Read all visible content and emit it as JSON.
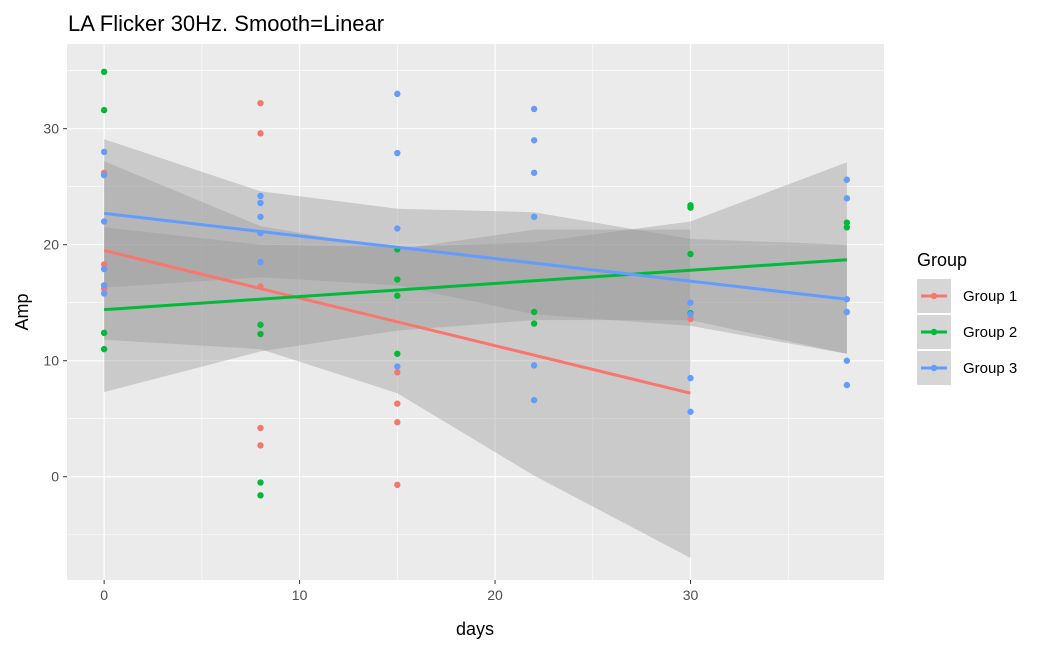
{
  "chart_data": {
    "type": "scatter",
    "title": "LA Flicker 30Hz. Smooth=Linear",
    "xlabel": "days",
    "ylabel": "Amp",
    "xlim": [
      -1.9,
      39.9
    ],
    "ylim": [
      -8.9,
      37.3
    ],
    "x_ticks": [
      0,
      10,
      20,
      30
    ],
    "y_ticks": [
      0,
      10,
      20,
      30
    ],
    "grid": true,
    "legend": {
      "title": "Group",
      "position": "right"
    },
    "band_color": "#999999",
    "series": [
      {
        "name": "Group 1",
        "color": "#F8766D",
        "points": [
          [
            0,
            26.2
          ],
          [
            0,
            18.3
          ],
          [
            0,
            16.2
          ],
          [
            8,
            32.2
          ],
          [
            8,
            29.6
          ],
          [
            8,
            16.4
          ],
          [
            8,
            4.2
          ],
          [
            8,
            2.7
          ],
          [
            15,
            9.0
          ],
          [
            15,
            6.3
          ],
          [
            15,
            4.7
          ],
          [
            15,
            -0.7
          ],
          [
            30,
            13.6
          ]
        ],
        "fit": {
          "x": [
            0,
            30
          ],
          "y": [
            19.5,
            7.2
          ]
        },
        "band": {
          "x": [
            0,
            8,
            15,
            22,
            30
          ],
          "upper": [
            27.2,
            21.6,
            19.6,
            21.3,
            21.3
          ],
          "lower": [
            11.8,
            11.0,
            7.2,
            0.1,
            -7.0
          ]
        }
      },
      {
        "name": "Group 2",
        "color": "#00BA38",
        "points": [
          [
            0,
            34.9
          ],
          [
            0,
            31.6
          ],
          [
            0,
            12.4
          ],
          [
            0,
            11.0
          ],
          [
            8,
            13.1
          ],
          [
            8,
            12.3
          ],
          [
            8,
            -0.5
          ],
          [
            8,
            -1.6
          ],
          [
            15,
            19.6
          ],
          [
            15,
            17.0
          ],
          [
            15,
            15.6
          ],
          [
            15,
            10.6
          ],
          [
            22,
            14.2
          ],
          [
            22,
            13.2
          ],
          [
            30,
            23.4
          ],
          [
            30,
            23.2
          ],
          [
            30,
            19.2
          ],
          [
            30,
            14.1
          ],
          [
            38,
            21.9
          ],
          [
            38,
            21.5
          ]
        ],
        "fit": {
          "x": [
            0,
            38
          ],
          "y": [
            14.4,
            18.7
          ]
        },
        "band": {
          "x": [
            0,
            8,
            15,
            22,
            30,
            38
          ],
          "upper": [
            21.5,
            20.0,
            19.8,
            20.2,
            22.0,
            27.1
          ],
          "lower": [
            7.3,
            10.8,
            12.6,
            13.5,
            13.5,
            10.6
          ]
        }
      },
      {
        "name": "Group 3",
        "color": "#619CFF",
        "points": [
          [
            0,
            28.0
          ],
          [
            0,
            26.0
          ],
          [
            0,
            22.0
          ],
          [
            0,
            17.9
          ],
          [
            0,
            16.5
          ],
          [
            0,
            15.8
          ],
          [
            8,
            24.2
          ],
          [
            8,
            23.6
          ],
          [
            8,
            22.4
          ],
          [
            8,
            21.0
          ],
          [
            8,
            18.5
          ],
          [
            15,
            33.0
          ],
          [
            15,
            27.9
          ],
          [
            15,
            21.4
          ],
          [
            15,
            9.5
          ],
          [
            22,
            31.7
          ],
          [
            22,
            29.0
          ],
          [
            22,
            26.2
          ],
          [
            22,
            22.4
          ],
          [
            22,
            9.6
          ],
          [
            22,
            6.6
          ],
          [
            30,
            15.0
          ],
          [
            30,
            14.0
          ],
          [
            30,
            8.5
          ],
          [
            30,
            5.6
          ],
          [
            38,
            25.6
          ],
          [
            38,
            24.0
          ],
          [
            38,
            15.3
          ],
          [
            38,
            14.2
          ],
          [
            38,
            10.0
          ],
          [
            38,
            7.9
          ]
        ],
        "fit": {
          "x": [
            0,
            38
          ],
          "y": [
            22.7,
            15.3
          ]
        },
        "band": {
          "x": [
            0,
            8,
            15,
            22,
            30,
            38
          ],
          "upper": [
            29.1,
            24.6,
            23.1,
            22.8,
            20.5,
            20.0
          ],
          "lower": [
            16.3,
            17.2,
            16.5,
            14.0,
            13.0,
            10.6
          ]
        }
      }
    ]
  }
}
